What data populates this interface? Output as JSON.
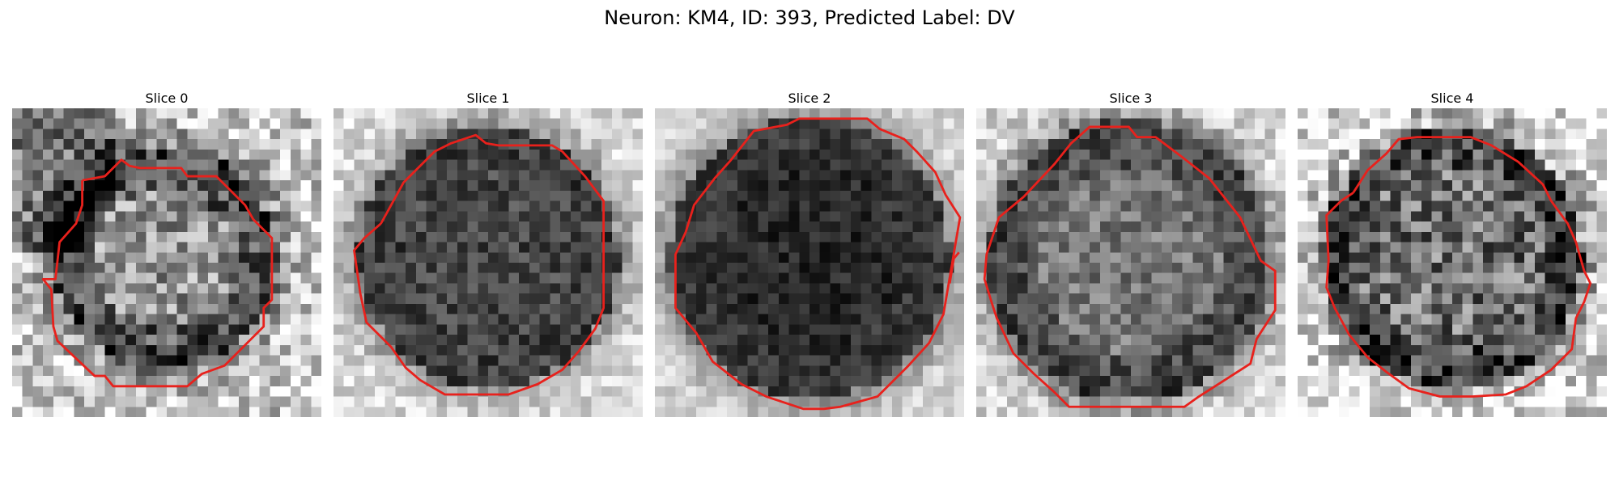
{
  "figure": {
    "title": "Neuron: KM4, ID: 393, Predicted Label: DV"
  },
  "panels": [
    {
      "title": "Slice 0",
      "image": "grayscale microscopy crop with red contour"
    },
    {
      "title": "Slice 1",
      "image": "grayscale microscopy crop with red contour"
    },
    {
      "title": "Slice 2",
      "image": "grayscale microscopy crop with red contour"
    },
    {
      "title": "Slice 3",
      "image": "grayscale microscopy crop with red contour"
    },
    {
      "title": "Slice 4",
      "image": "grayscale microscopy crop with red contour"
    }
  ],
  "colors": {
    "contour": "#e8211c"
  }
}
